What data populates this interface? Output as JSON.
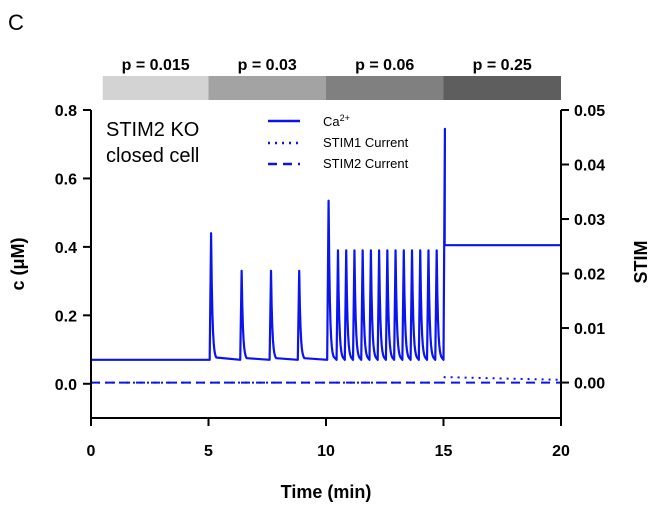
{
  "panel_letter": "C",
  "chart_data": {
    "type": "line",
    "title": "",
    "xlabel": "Time (min)",
    "ylabel": "c (μM)",
    "ylabel_right": "STIM",
    "xlim": [
      0,
      20
    ],
    "ylim": [
      -0.1,
      0.8
    ],
    "ylim_right": [
      -0.0065,
      0.05
    ],
    "x_ticks": [
      0,
      5,
      10,
      15,
      20
    ],
    "x_tick_labels": [
      "0",
      "5",
      "10",
      "15",
      "20"
    ],
    "y_ticks": [
      0.0,
      0.2,
      0.4,
      0.6,
      0.8
    ],
    "y_tick_labels": [
      "0.0",
      "0.2",
      "0.4",
      "0.6",
      "0.8"
    ],
    "y_right_ticks": [
      0.0,
      0.01,
      0.02,
      0.03,
      0.04,
      0.05
    ],
    "y_right_tick_labels": [
      "0.00",
      "0.01",
      "0.02",
      "0.03",
      "0.04",
      "0.05"
    ],
    "grid": false,
    "legend_position": "top-center",
    "annotation": [
      "STIM2 KO",
      "closed cell"
    ],
    "bands": [
      {
        "label": "p = 0.015",
        "x_start": 0.5,
        "x_end": 5.0,
        "color": "#d3d3d3"
      },
      {
        "label": "p = 0.03",
        "x_start": 5.0,
        "x_end": 10.0,
        "color": "#a3a3a3"
      },
      {
        "label": "p = 0.06",
        "x_start": 10.0,
        "x_end": 15.0,
        "color": "#808080"
      },
      {
        "label": "p = 0.25",
        "x_start": 15.0,
        "x_end": 20.0,
        "color": "#5e5e5e"
      }
    ],
    "series": [
      {
        "name": "Ca2+",
        "color": "#0a14f0",
        "style": "solid",
        "axis": "left",
        "baseline": 0.07,
        "spikes": [
          {
            "t": 5.05,
            "peak": 0.44
          },
          {
            "t": 6.35,
            "peak": 0.33
          },
          {
            "t": 7.6,
            "peak": 0.33
          },
          {
            "t": 8.8,
            "peak": 0.33
          },
          {
            "t": 10.05,
            "peak": 0.535
          },
          {
            "t": 10.45,
            "peak": 0.39
          },
          {
            "t": 10.8,
            "peak": 0.39
          },
          {
            "t": 11.15,
            "peak": 0.39
          },
          {
            "t": 11.5,
            "peak": 0.39
          },
          {
            "t": 11.85,
            "peak": 0.39
          },
          {
            "t": 12.2,
            "peak": 0.39
          },
          {
            "t": 12.55,
            "peak": 0.39
          },
          {
            "t": 12.9,
            "peak": 0.39
          },
          {
            "t": 13.25,
            "peak": 0.39
          },
          {
            "t": 13.6,
            "peak": 0.39
          },
          {
            "t": 13.95,
            "peak": 0.39
          },
          {
            "t": 14.3,
            "peak": 0.39
          },
          {
            "t": 14.65,
            "peak": 0.39
          },
          {
            "t": 15.0,
            "peak": 0.745
          }
        ],
        "plateau": {
          "t_start": 15.05,
          "t_end": 20.0,
          "value": 0.405
        }
      },
      {
        "name": "STIM1 Current",
        "color": "#0a14f0",
        "style": "dotted",
        "axis": "right",
        "values": [
          [
            0,
            0.0
          ],
          [
            5,
            0.0
          ],
          [
            10,
            0.0
          ],
          [
            15,
            0.0
          ],
          [
            15.05,
            0.001
          ],
          [
            20,
            0.0005
          ]
        ]
      },
      {
        "name": "STIM2 Current",
        "color": "#0a14f0",
        "style": "dashed",
        "axis": "right",
        "values": [
          [
            0,
            0.0
          ],
          [
            20,
            0.0
          ]
        ]
      }
    ]
  }
}
